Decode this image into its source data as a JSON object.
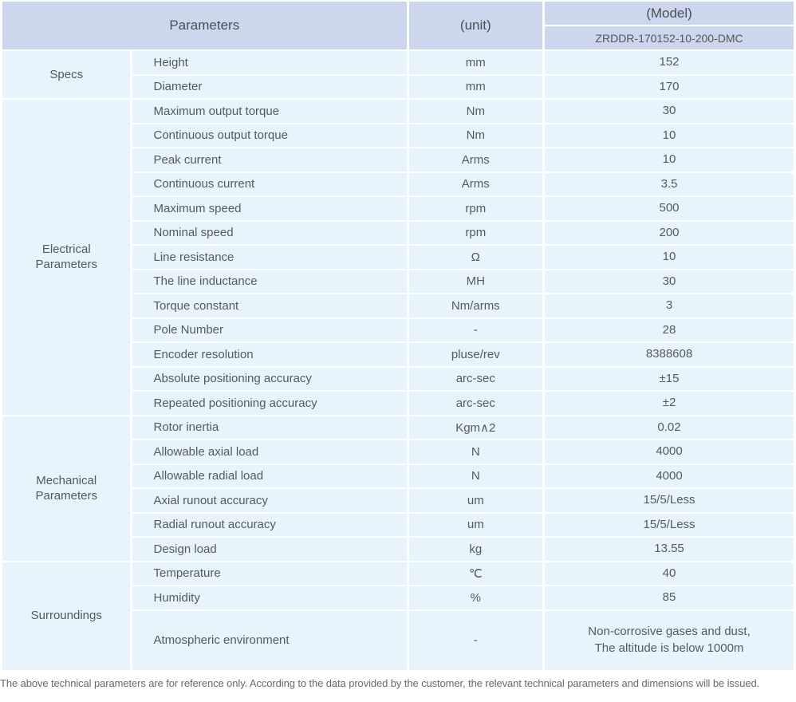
{
  "table": {
    "header": {
      "parameters": "Parameters",
      "unit": "(unit)",
      "model": "(Model)",
      "model_value": "ZRDDR-170152-10-200-DMC"
    },
    "groups": [
      {
        "label": "Specs",
        "rows": [
          {
            "name": "Height",
            "unit": "mm",
            "value": "152"
          },
          {
            "name": "Diameter",
            "unit": "mm",
            "value": "170"
          }
        ]
      },
      {
        "label": "Electrical Parameters",
        "rows": [
          {
            "name": "Maximum output torque",
            "unit": "Nm",
            "value": "30"
          },
          {
            "name": "Continuous output torque",
            "unit": "Nm",
            "value": "10"
          },
          {
            "name": "Peak current",
            "unit": "Arms",
            "value": "10"
          },
          {
            "name": "Continuous current",
            "unit": "Arms",
            "value": "3.5"
          },
          {
            "name": "Maximum speed",
            "unit": "rpm",
            "value": "500"
          },
          {
            "name": "Nominal speed",
            "unit": "rpm",
            "value": "200"
          },
          {
            "name": "Line resistance",
            "unit": "Ω",
            "value": "10"
          },
          {
            "name": "The line inductance",
            "unit": "MH",
            "value": "30"
          },
          {
            "name": "Torque constant",
            "unit": "Nm/arms",
            "value": "3"
          },
          {
            "name": "Pole Number",
            "unit": "-",
            "value": "28"
          },
          {
            "name": "Encoder resolution",
            "unit": "pluse/rev",
            "value": "8388608"
          },
          {
            "name": "Absolute positioning accuracy",
            "unit": "arc-sec",
            "value": "±15"
          },
          {
            "name": "Repeated positioning accuracy",
            "unit": "arc-sec",
            "value": "±2"
          }
        ]
      },
      {
        "label": "Mechanical Parameters",
        "rows": [
          {
            "name": "Rotor inertia",
            "unit": "Kgm∧2",
            "value": "0.02"
          },
          {
            "name": "Allowable axial load",
            "unit": "N",
            "value": "4000"
          },
          {
            "name": "Allowable radial load",
            "unit": "N",
            "value": "4000"
          },
          {
            "name": "Axial runout accuracy",
            "unit": "um",
            "value": "15/5/Less"
          },
          {
            "name": "Radial runout accuracy",
            "unit": "um",
            "value": "15/5/Less"
          },
          {
            "name": "Design load",
            "unit": "kg",
            "value": "13.55"
          }
        ]
      },
      {
        "label": "Surroundings",
        "rows": [
          {
            "name": "Temperature",
            "unit": "℃",
            "value": "40"
          },
          {
            "name": "Humidity",
            "unit": "%",
            "value": "85"
          },
          {
            "name": "Atmospheric environment",
            "unit": "-",
            "value": "Non-corrosive gases and dust,\nThe altitude is below 1000m"
          }
        ]
      }
    ]
  },
  "footer": {
    "note": "The above technical parameters are for reference only. According to the data provided by the customer, the relevant technical parameters and dimensions will be issued."
  },
  "colors": {
    "header_bg": "#ccd7ed",
    "cell_bg": "#e7f4fc",
    "text": "#56595f",
    "footnote_text": "#66696e"
  }
}
